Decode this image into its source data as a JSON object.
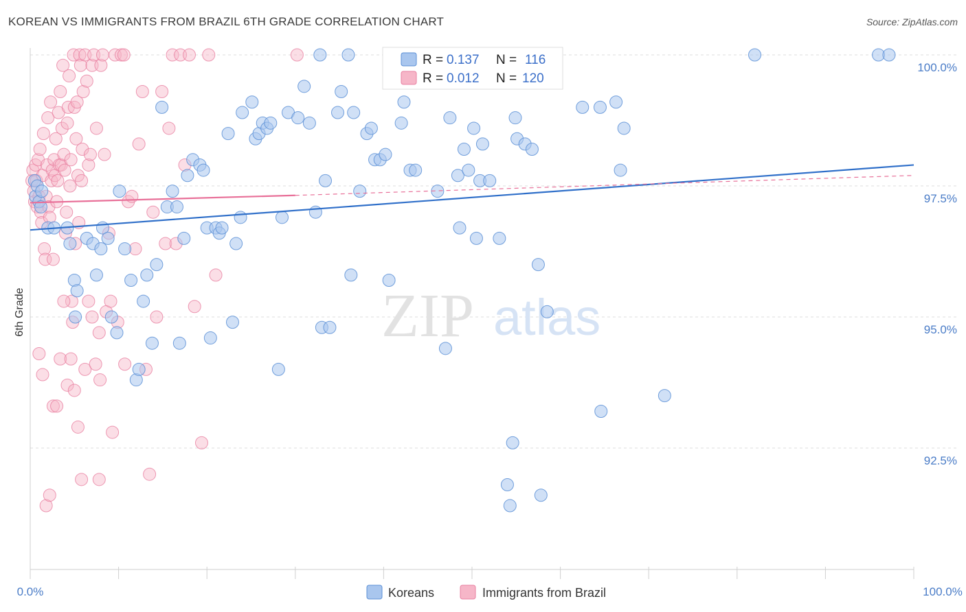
{
  "title": "KOREAN VS IMMIGRANTS FROM BRAZIL 6TH GRADE CORRELATION CHART",
  "source": "Source: ZipAtlas.com",
  "watermark": {
    "zip": "ZIP",
    "atlas": "atlas"
  },
  "colors": {
    "koreans_fill": "#a9c6ee",
    "koreans_stroke": "#5b8fd6",
    "koreans_line": "#2f6fc9",
    "brazil_fill": "#f6b6c8",
    "brazil_stroke": "#e87fa0",
    "brazil_line": "#e86f98",
    "grid": "#dddddd",
    "axis_text": "#4a7cc7"
  },
  "legend": {
    "r_label": "R =",
    "n_label": "N =",
    "rows": [
      {
        "r": "0.137",
        "n": "116"
      },
      {
        "r": "0.012",
        "n": "120"
      }
    ]
  },
  "chart_data": {
    "type": "scatter",
    "title": "KOREAN VS IMMIGRANTS FROM BRAZIL 6TH GRADE CORRELATION CHART",
    "xlabel": "",
    "ylabel": "6th Grade",
    "xlim": [
      0,
      100
    ],
    "ylim": [
      90.5,
      100.4
    ],
    "x_tick_labels": [
      "0.0%",
      "100.0%"
    ],
    "y_ticks": [
      92.5,
      95.0,
      97.5,
      100.0
    ],
    "y_tick_labels": [
      "92.5%",
      "95.0%",
      "97.5%",
      "100.0%"
    ],
    "grid": true,
    "legend_position": "top-center",
    "series": [
      {
        "name": "Koreans",
        "trend": {
          "x": [
            0,
            100
          ],
          "y": [
            96.66,
            97.9
          ]
        },
        "points": [
          [
            0.5,
            97.6
          ],
          [
            0.6,
            97.3
          ],
          [
            0.8,
            97.5
          ],
          [
            1.0,
            97.2
          ],
          [
            1.3,
            97.4
          ],
          [
            1.2,
            97.1
          ],
          [
            2.0,
            96.7
          ],
          [
            2.7,
            96.7
          ],
          [
            4.2,
            96.7
          ],
          [
            4.5,
            96.4
          ],
          [
            5.0,
            95.7
          ],
          [
            5.3,
            95.5
          ],
          [
            5.1,
            95.0
          ],
          [
            6.4,
            96.5
          ],
          [
            7.1,
            96.4
          ],
          [
            7.5,
            95.8
          ],
          [
            8.0,
            96.3
          ],
          [
            8.2,
            96.7
          ],
          [
            8.8,
            96.5
          ],
          [
            9.2,
            95.0
          ],
          [
            9.8,
            94.7
          ],
          [
            10.1,
            97.4
          ],
          [
            10.7,
            96.3
          ],
          [
            11.4,
            95.7
          ],
          [
            12.0,
            93.8
          ],
          [
            12.3,
            94.0
          ],
          [
            12.8,
            95.3
          ],
          [
            13.2,
            95.8
          ],
          [
            13.8,
            94.5
          ],
          [
            14.3,
            96.0
          ],
          [
            14.9,
            99.0
          ],
          [
            15.5,
            97.1
          ],
          [
            16.1,
            97.4
          ],
          [
            16.6,
            97.1
          ],
          [
            16.9,
            94.5
          ],
          [
            17.4,
            96.5
          ],
          [
            17.8,
            97.7
          ],
          [
            18.4,
            98.0
          ],
          [
            19.2,
            97.9
          ],
          [
            19.6,
            97.8
          ],
          [
            20.0,
            96.7
          ],
          [
            20.4,
            94.6
          ],
          [
            21.0,
            96.7
          ],
          [
            21.4,
            96.6
          ],
          [
            21.7,
            96.7
          ],
          [
            22.4,
            98.5
          ],
          [
            22.9,
            94.9
          ],
          [
            23.3,
            96.4
          ],
          [
            23.8,
            96.9
          ],
          [
            24.0,
            98.9
          ],
          [
            25.1,
            99.1
          ],
          [
            25.5,
            98.4
          ],
          [
            25.9,
            98.5
          ],
          [
            26.3,
            98.7
          ],
          [
            26.8,
            98.6
          ],
          [
            27.2,
            98.7
          ],
          [
            28.1,
            94.0
          ],
          [
            28.5,
            96.9
          ],
          [
            29.2,
            98.9
          ],
          [
            30.3,
            98.8
          ],
          [
            31.0,
            99.4
          ],
          [
            31.6,
            98.7
          ],
          [
            32.3,
            97.0
          ],
          [
            32.8,
            100.0
          ],
          [
            33.0,
            94.8
          ],
          [
            33.4,
            97.6
          ],
          [
            33.9,
            94.8
          ],
          [
            34.8,
            98.9
          ],
          [
            35.2,
            99.3
          ],
          [
            36.0,
            100.0
          ],
          [
            36.3,
            95.8
          ],
          [
            36.6,
            98.9
          ],
          [
            37.3,
            97.4
          ],
          [
            38.1,
            98.5
          ],
          [
            38.6,
            98.6
          ],
          [
            39.0,
            98.0
          ],
          [
            39.6,
            98.0
          ],
          [
            40.6,
            95.7
          ],
          [
            40.2,
            98.1
          ],
          [
            41.1,
            100.0
          ],
          [
            42.0,
            98.7
          ],
          [
            42.3,
            99.1
          ],
          [
            43.0,
            97.8
          ],
          [
            43.6,
            97.8
          ],
          [
            44.2,
            100.0
          ],
          [
            46.1,
            97.4
          ],
          [
            47.0,
            94.4
          ],
          [
            47.5,
            98.8
          ],
          [
            48.0,
            99.7
          ],
          [
            48.4,
            97.7
          ],
          [
            48.6,
            96.7
          ],
          [
            49.1,
            98.2
          ],
          [
            49.6,
            97.8
          ],
          [
            50.2,
            98.6
          ],
          [
            50.5,
            96.5
          ],
          [
            50.9,
            97.6
          ],
          [
            51.2,
            98.3
          ],
          [
            52.0,
            97.6
          ],
          [
            52.4,
            100.0
          ],
          [
            53.1,
            96.5
          ],
          [
            54.0,
            91.8
          ],
          [
            54.3,
            91.4
          ],
          [
            54.6,
            92.6
          ],
          [
            54.9,
            98.8
          ],
          [
            55.1,
            98.4
          ],
          [
            56.0,
            98.3
          ],
          [
            56.8,
            98.2
          ],
          [
            57.5,
            96.0
          ],
          [
            57.8,
            91.6
          ],
          [
            58.5,
            95.1
          ],
          [
            62.5,
            99.0
          ],
          [
            64.5,
            99.0
          ],
          [
            64.6,
            93.2
          ],
          [
            66.3,
            99.1
          ],
          [
            66.8,
            97.8
          ],
          [
            67.2,
            98.6
          ],
          [
            71.8,
            93.5
          ],
          [
            82.0,
            100.0
          ],
          [
            96.0,
            100.0
          ],
          [
            97.2,
            100.0
          ]
        ]
      },
      {
        "name": "Immigrants from Brazil",
        "trend": {
          "x": [
            0,
            30
          ],
          "y": [
            97.18,
            97.32
          ]
        },
        "trend_dashed": {
          "x": [
            30,
            100
          ],
          "y": [
            97.32,
            97.7
          ]
        },
        "points": [
          [
            0.2,
            97.6
          ],
          [
            0.3,
            97.8
          ],
          [
            0.4,
            97.4
          ],
          [
            0.5,
            97.2
          ],
          [
            0.6,
            97.9
          ],
          [
            0.7,
            97.6
          ],
          [
            0.8,
            97.1
          ],
          [
            0.9,
            98.0
          ],
          [
            1.0,
            97.3
          ],
          [
            1.1,
            98.2
          ],
          [
            1.2,
            97.0
          ],
          [
            1.3,
            96.8
          ],
          [
            1.4,
            97.7
          ],
          [
            1.5,
            98.5
          ],
          [
            1.6,
            96.3
          ],
          [
            1.7,
            96.1
          ],
          [
            1.8,
            97.3
          ],
          [
            1.9,
            97.9
          ],
          [
            2.0,
            98.8
          ],
          [
            2.1,
            97.1
          ],
          [
            2.2,
            96.9
          ],
          [
            2.3,
            99.1
          ],
          [
            2.4,
            97.6
          ],
          [
            2.5,
            97.8
          ],
          [
            2.6,
            96.1
          ],
          [
            2.7,
            98.0
          ],
          [
            2.8,
            97.7
          ],
          [
            2.9,
            98.4
          ],
          [
            3.0,
            97.2
          ],
          [
            3.1,
            97.6
          ],
          [
            3.2,
            98.9
          ],
          [
            3.3,
            97.9
          ],
          [
            3.4,
            99.3
          ],
          [
            3.5,
            97.9
          ],
          [
            3.6,
            98.6
          ],
          [
            3.7,
            99.8
          ],
          [
            3.8,
            98.1
          ],
          [
            3.9,
            97.8
          ],
          [
            4.0,
            96.6
          ],
          [
            4.1,
            97.0
          ],
          [
            4.2,
            98.7
          ],
          [
            4.3,
            99.0
          ],
          [
            4.4,
            99.6
          ],
          [
            4.5,
            97.5
          ],
          [
            4.6,
            98.0
          ],
          [
            4.7,
            95.3
          ],
          [
            4.8,
            94.9
          ],
          [
            4.9,
            100.0
          ],
          [
            5.0,
            99.0
          ],
          [
            5.1,
            96.4
          ],
          [
            5.2,
            98.4
          ],
          [
            5.3,
            99.1
          ],
          [
            5.4,
            97.7
          ],
          [
            5.5,
            96.8
          ],
          [
            5.6,
            100.0
          ],
          [
            5.7,
            99.8
          ],
          [
            5.8,
            97.6
          ],
          [
            5.9,
            98.2
          ],
          [
            6.0,
            99.3
          ],
          [
            6.2,
            100.0
          ],
          [
            6.4,
            99.5
          ],
          [
            6.6,
            97.9
          ],
          [
            6.8,
            98.1
          ],
          [
            7.0,
            99.8
          ],
          [
            7.2,
            100.0
          ],
          [
            7.5,
            98.6
          ],
          [
            7.8,
            94.7
          ],
          [
            7.9,
            93.8
          ],
          [
            8.0,
            99.8
          ],
          [
            8.2,
            100.0
          ],
          [
            8.4,
            98.1
          ],
          [
            8.6,
            95.1
          ],
          [
            8.9,
            96.6
          ],
          [
            9.1,
            95.3
          ],
          [
            9.3,
            92.8
          ],
          [
            9.6,
            100.0
          ],
          [
            9.9,
            94.9
          ],
          [
            10.3,
            100.0
          ],
          [
            10.7,
            94.1
          ],
          [
            11.1,
            97.2
          ],
          [
            11.5,
            97.3
          ],
          [
            11.9,
            96.3
          ],
          [
            12.3,
            98.3
          ],
          [
            12.7,
            99.3
          ],
          [
            13.1,
            94.0
          ],
          [
            13.5,
            92.0
          ],
          [
            13.9,
            97.0
          ],
          [
            14.3,
            95.0
          ],
          [
            14.9,
            99.3
          ],
          [
            15.3,
            96.4
          ],
          [
            15.7,
            98.6
          ],
          [
            16.1,
            100.0
          ],
          [
            16.5,
            96.4
          ],
          [
            17.0,
            100.0
          ],
          [
            17.5,
            97.9
          ],
          [
            18.0,
            100.0
          ],
          [
            18.6,
            95.2
          ],
          [
            19.4,
            92.6
          ],
          [
            20.2,
            100.0
          ],
          [
            21.0,
            95.8
          ],
          [
            1.0,
            94.3
          ],
          [
            1.4,
            93.9
          ],
          [
            1.8,
            91.4
          ],
          [
            2.2,
            91.6
          ],
          [
            2.6,
            93.3
          ],
          [
            3.0,
            93.3
          ],
          [
            3.4,
            94.2
          ],
          [
            3.8,
            95.3
          ],
          [
            4.2,
            93.7
          ],
          [
            4.6,
            94.2
          ],
          [
            5.0,
            93.6
          ],
          [
            5.4,
            92.9
          ],
          [
            5.8,
            91.9
          ],
          [
            6.2,
            94.0
          ],
          [
            6.6,
            95.3
          ],
          [
            7.0,
            95.0
          ],
          [
            7.4,
            94.1
          ],
          [
            7.8,
            91.9
          ],
          [
            30.2,
            100.0
          ],
          [
            10.6,
            100.0
          ]
        ]
      }
    ]
  },
  "bottom_legend": {
    "items": [
      {
        "label": "Koreans"
      },
      {
        "label": "Immigrants from Brazil"
      }
    ]
  }
}
